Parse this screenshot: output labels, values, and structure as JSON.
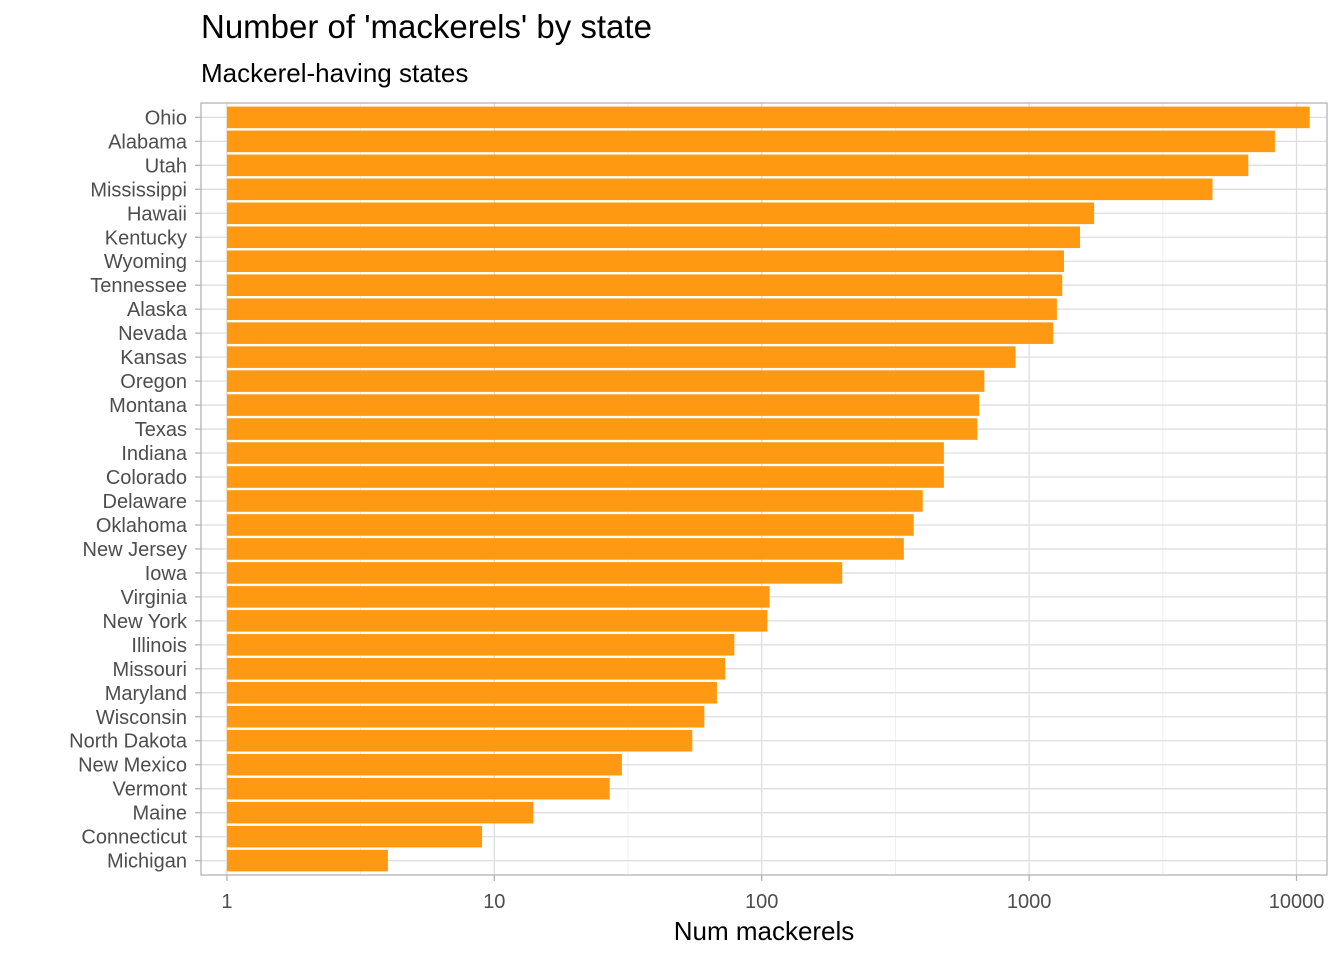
{
  "chart_data": {
    "type": "bar",
    "orientation": "horizontal",
    "title": "Number of 'mackerels' by state",
    "subtitle": "Mackerel-having states",
    "xlabel": "Num mackerels",
    "ylabel": "",
    "x_scale": "log10",
    "xlim": [
      0.8,
      13000
    ],
    "x_ticks": [
      "1",
      "10",
      "100",
      "1000",
      "10000"
    ],
    "grid": true,
    "bar_color": "#FF9912",
    "categories": [
      "Ohio",
      "Alabama",
      "Utah",
      "Mississippi",
      "Hawaii",
      "Kentucky",
      "Wyoming",
      "Tennessee",
      "Alaska",
      "Nevada",
      "Kansas",
      "Oregon",
      "Montana",
      "Texas",
      "Indiana",
      "Colorado",
      "Delaware",
      "Oklahoma",
      "New Jersey",
      "Iowa",
      "Virginia",
      "New York",
      "Illinois",
      "Missouri",
      "Maryland",
      "Wisconsin",
      "North Dakota",
      "New Mexico",
      "Vermont",
      "Maine",
      "Connecticut",
      "Michigan"
    ],
    "values": [
      11200,
      8300,
      6600,
      4850,
      1750,
      1550,
      1350,
      1330,
      1270,
      1230,
      890,
      680,
      650,
      640,
      480,
      480,
      400,
      370,
      340,
      200,
      107,
      105,
      79,
      73,
      68,
      61,
      55,
      30,
      27,
      14,
      9,
      4
    ]
  }
}
